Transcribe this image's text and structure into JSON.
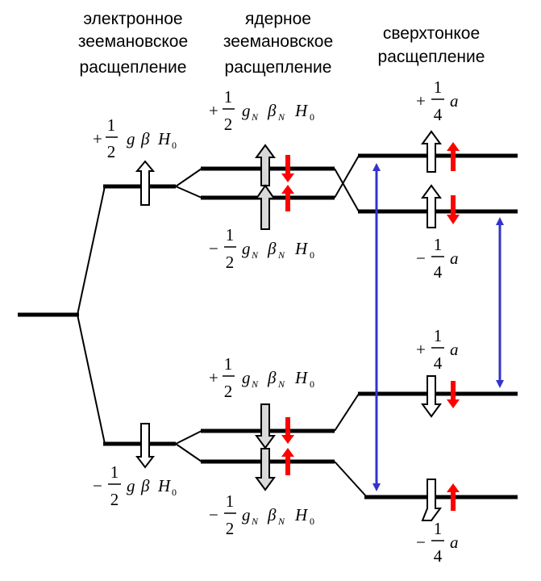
{
  "headers": {
    "electron": [
      "электронное",
      "зеемановское",
      "расщепление"
    ],
    "nuclear": [
      "ядерное",
      "зеемановское",
      "расщепление"
    ],
    "hyperfine": [
      "сверхтонкое",
      "расщепление"
    ]
  },
  "electron_labels": {
    "upper": {
      "sign": "+",
      "num": "1",
      "den": "2",
      "g": "g",
      "beta": "β",
      "H": "H",
      "Hsub": "0"
    },
    "lower": {
      "sign": "−",
      "num": "1",
      "den": "2",
      "g": "g",
      "beta": "β",
      "H": "H",
      "Hsub": "0"
    }
  },
  "nuclear_labels": [
    {
      "sign": "+",
      "num": "1",
      "den": "2",
      "g": "g",
      "gsub": "N",
      "beta": "β",
      "bsub": "N",
      "H": "H",
      "Hsub": "0"
    },
    {
      "sign": "−",
      "num": "1",
      "den": "2",
      "g": "g",
      "gsub": "N",
      "beta": "β",
      "bsub": "N",
      "H": "H",
      "Hsub": "0"
    },
    {
      "sign": "+",
      "num": "1",
      "den": "2",
      "g": "g",
      "gsub": "N",
      "beta": "β",
      "bsub": "N",
      "H": "H",
      "Hsub": "0"
    },
    {
      "sign": "−",
      "num": "1",
      "den": "2",
      "g": "g",
      "gsub": "N",
      "beta": "β",
      "bsub": "N",
      "H": "H",
      "Hsub": "0"
    }
  ],
  "hyperfine_labels": [
    {
      "sign": "+",
      "num": "1",
      "den": "4",
      "a": "a"
    },
    {
      "sign": "−",
      "num": "1",
      "den": "4",
      "a": "a"
    },
    {
      "sign": "+",
      "num": "1",
      "den": "4",
      "a": "a"
    },
    {
      "sign": "−",
      "num": "1",
      "den": "4",
      "a": "a"
    }
  ],
  "colors": {
    "level": "#000000",
    "nuclear_spin": "#ff0000",
    "transition": "#3333cc",
    "electron_spin_fill": "#ffffff",
    "nuclear_level_spin_fill": "#d9d9d9"
  }
}
